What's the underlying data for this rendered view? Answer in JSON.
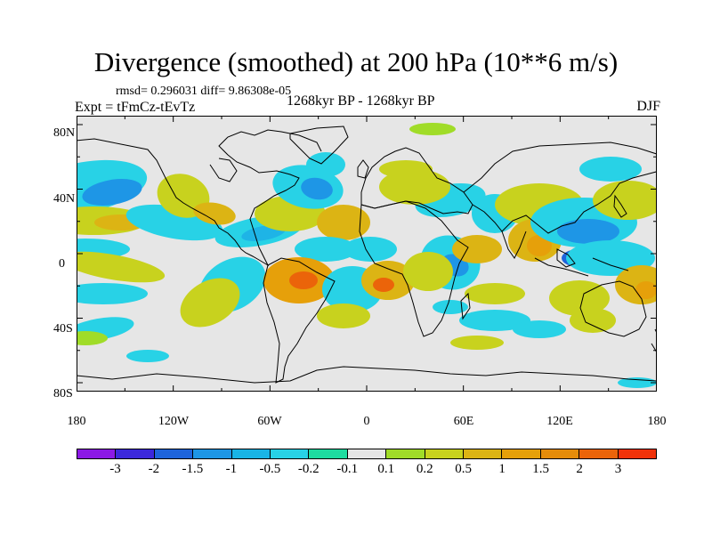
{
  "title": "Divergence (smoothed) at 200 hPa (10**6 m/s)",
  "rmsd_line": "rmsd= 0.296031 diff= 9.86308e-05",
  "experiment": "Expt = tFmCz-tEvTz",
  "period": "1268kyr BP - 1268kyr BP",
  "season": "DJF",
  "lat_labels": [
    "80N",
    "40N",
    "0",
    "40S",
    "80S"
  ],
  "lon_labels": [
    "180",
    "120W",
    "60W",
    "0",
    "60E",
    "120E",
    "180"
  ],
  "colorbar": {
    "colors": [
      "#8c19e6",
      "#3c28dc",
      "#1e64dc",
      "#1e96e6",
      "#19b4e6",
      "#28d2e6",
      "#1edca0",
      "#e6e6e6",
      "#a0dc28",
      "#c8d21e",
      "#dcb414",
      "#e6a00a",
      "#e68c0a",
      "#eb640a",
      "#f0320a"
    ],
    "labels": [
      "-3",
      "-2",
      "-1.5",
      "-1",
      "-0.5",
      "-0.2",
      "-0.1",
      "0.1",
      "0.2",
      "0.5",
      "1",
      "1.5",
      "2",
      "3"
    ]
  },
  "field_colors": {
    "background": "#e6e6e6",
    "cyan": "#28d2e6",
    "blue_light": "#1eb4e6",
    "blue": "#1e96e6",
    "blue_dark": "#1e64dc",
    "green": "#1edca0",
    "yellowgreen": "#a0dc28",
    "yellow": "#c8d21e",
    "orange_light": "#dcb414",
    "orange": "#e6a00a",
    "orange_dark": "#eb640a",
    "red": "#f0320a"
  }
}
